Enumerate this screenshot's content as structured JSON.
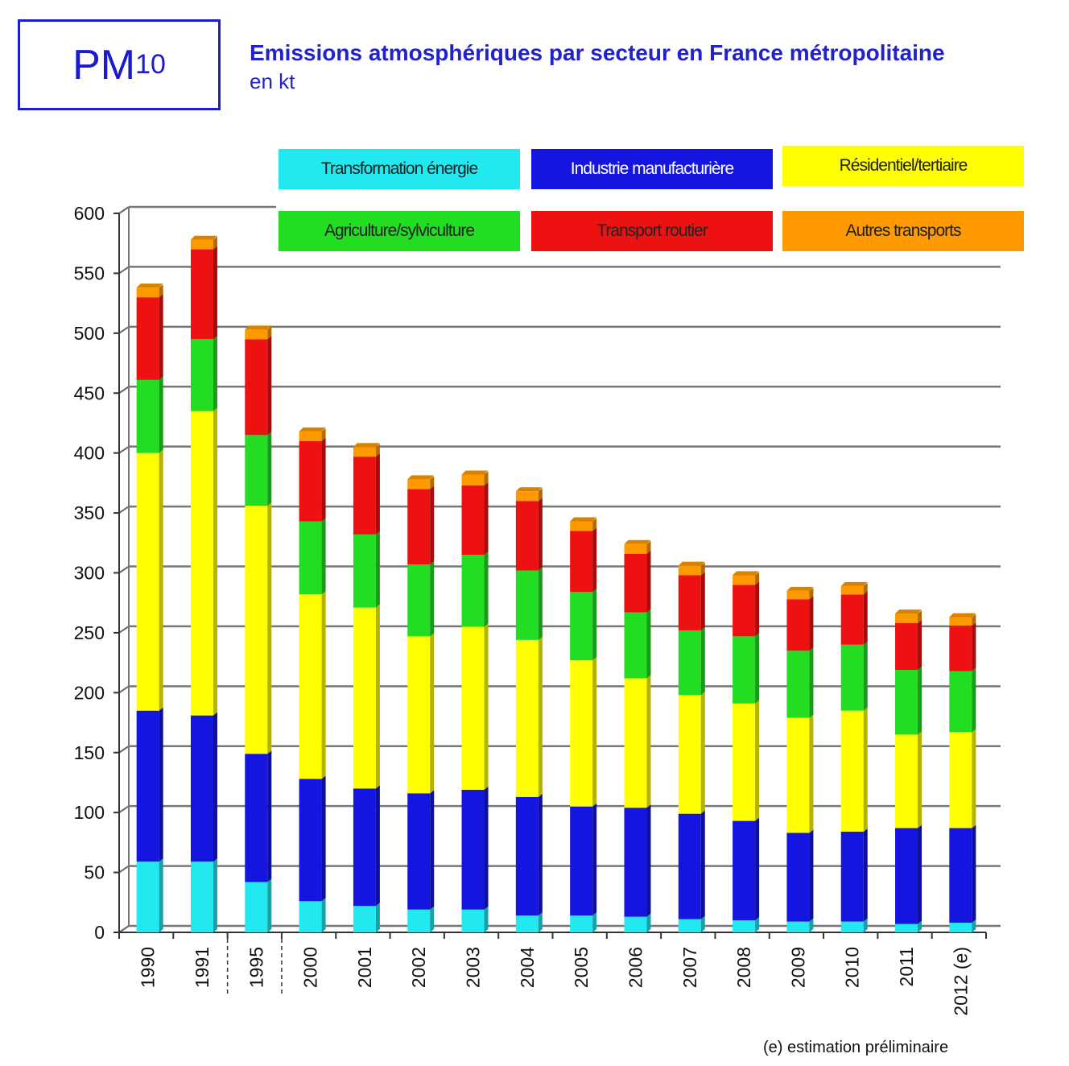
{
  "header": {
    "pollutant": "PM",
    "pollutant_sub": "10"
  },
  "chart_data": {
    "type": "bar",
    "stacked": true,
    "title": "Emissions atmosphériques par secteur en France métropolitaine",
    "subtitle": "en kt",
    "xlabel": "",
    "ylabel": "",
    "ylim": [
      0,
      600
    ],
    "yticks": [
      0,
      50,
      100,
      150,
      200,
      250,
      300,
      350,
      400,
      450,
      500,
      550,
      600
    ],
    "grid": true,
    "legend_placement": "top",
    "categories": [
      "1990",
      "1991",
      "1995",
      "2000",
      "2001",
      "2002",
      "2003",
      "2004",
      "2005",
      "2006",
      "2007",
      "2008",
      "2009",
      "2010",
      "2011",
      "2012 (e)"
    ],
    "series": [
      {
        "name": "Transformation énergie",
        "color": "#22e8f0",
        "values": [
          59,
          59,
          42,
          26,
          22,
          19,
          19,
          14,
          14,
          13,
          11,
          10,
          9,
          9,
          7,
          8
        ]
      },
      {
        "name": "Industrie manufacturière",
        "color": "#1515e0",
        "values": [
          126,
          122,
          107,
          102,
          98,
          97,
          100,
          99,
          91,
          91,
          88,
          83,
          74,
          75,
          80,
          79
        ]
      },
      {
        "name": "Résidentiel/tertiaire",
        "color": "#ffff00",
        "values": [
          215,
          254,
          207,
          154,
          151,
          131,
          136,
          131,
          122,
          108,
          99,
          98,
          96,
          101,
          78,
          80
        ]
      },
      {
        "name": "Agriculture/sylviculture",
        "color": "#22dd22",
        "values": [
          61,
          60,
          59,
          61,
          61,
          60,
          60,
          58,
          57,
          55,
          54,
          56,
          56,
          55,
          54,
          51
        ]
      },
      {
        "name": "Transport routier",
        "color": "#ee1111",
        "values": [
          69,
          75,
          80,
          67,
          65,
          63,
          58,
          58,
          51,
          49,
          46,
          43,
          43,
          42,
          39,
          38
        ]
      },
      {
        "name": "Autres transports",
        "color": "#ff9900",
        "values": [
          8,
          8,
          8,
          8,
          8,
          8,
          9,
          8,
          8,
          8,
          8,
          8,
          7,
          7,
          8,
          7
        ]
      }
    ],
    "footnote": "(e) estimation préliminaire"
  }
}
